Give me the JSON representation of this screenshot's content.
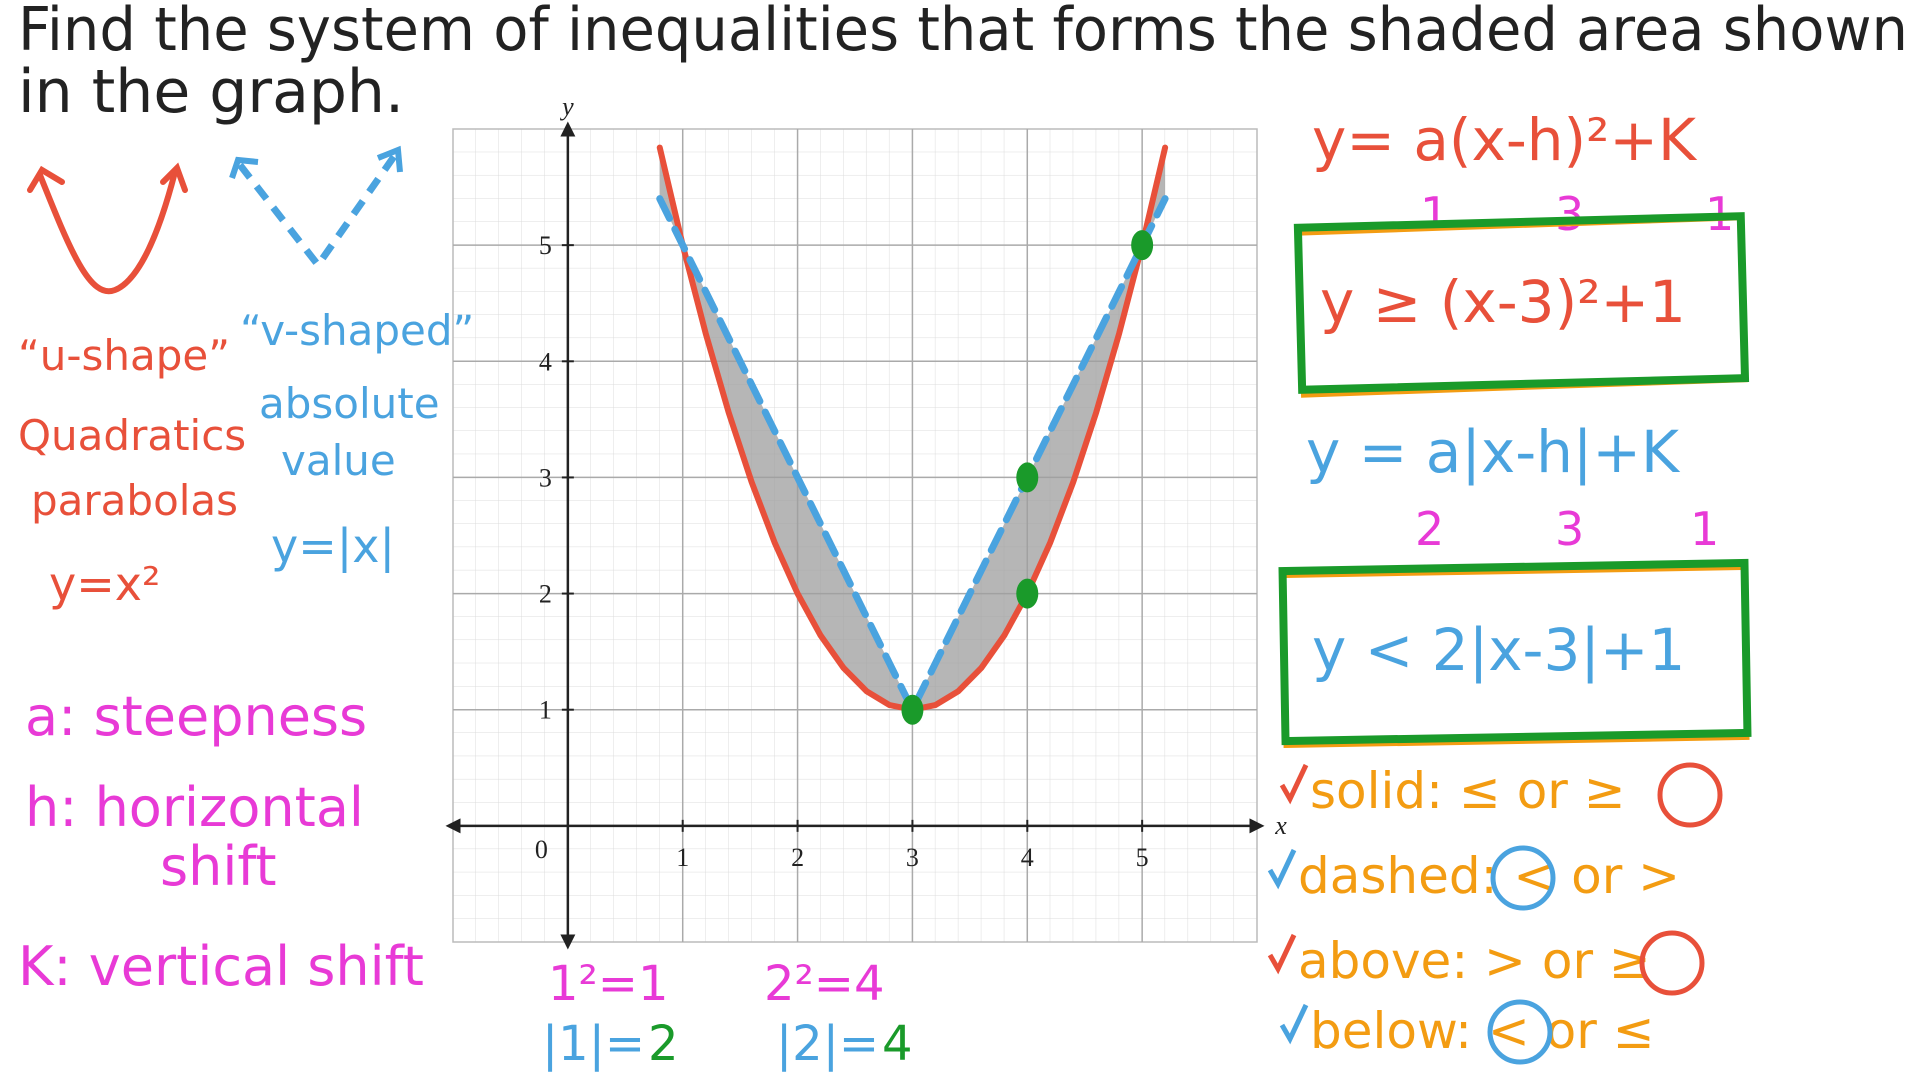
{
  "title_lines": [
    "Find the system of inequalities that forms the shaded area shown",
    "in the graph."
  ],
  "left_notes": {
    "u_shape": "“u-shape”",
    "v_shaped": "“v-shaped”",
    "quadratics": "Quadratics",
    "parabolas": "parabolas",
    "parabola_eq": "y=x²",
    "absolute": "absolute",
    "value": "value",
    "abs_eq": "y=|x|",
    "a_def": "a: steepness",
    "h_def": "h: horizontal",
    "h_def2": "shift",
    "k_def": "K: vertical shift"
  },
  "bottom_notes": {
    "sq1": "1²=1",
    "abs1": "|1|=",
    "abs1_fix": "2",
    "sq2": "2²=4",
    "abs2": "|2|=",
    "abs2_fix": "4"
  },
  "right_notes": {
    "vertex_form": "y= a(x-h)²+K",
    "quad_params": [
      "1",
      "3",
      "1"
    ],
    "quad_answer": "y ≥ (x-3)²+1",
    "abs_form": "y = a|x-h|+K",
    "abs_params": [
      "2",
      "3",
      "1"
    ],
    "abs_answer": "y < 2|x-3|+1",
    "rules": [
      "solid: ≤ or ≥",
      "dashed: < or >",
      "above: > or ≥",
      "below: < or ≤"
    ]
  },
  "chart_data": {
    "type": "line",
    "x_label": "x",
    "y_label": "y",
    "origin_label": "0",
    "x": [
      0.8,
      1.0,
      1.2,
      1.4,
      1.6,
      1.8,
      2.0,
      2.2,
      2.4,
      2.6,
      2.8,
      3.0,
      3.2,
      3.4,
      3.6,
      3.8,
      4.0,
      4.2,
      4.4,
      4.6,
      4.8,
      5.0,
      5.2
    ],
    "series": [
      {
        "color": "#e8503a",
        "values": [
          5.84,
          5.0,
          4.24,
          3.56,
          2.96,
          2.44,
          2.0,
          1.64,
          1.36,
          1.16,
          1.04,
          1.0,
          1.04,
          1.16,
          1.36,
          1.64,
          2.0,
          2.44,
          2.96,
          3.56,
          4.24,
          5.0,
          5.84
        ]
      },
      {
        "color": "#4aa3df",
        "dashed": true,
        "values": [
          5.4,
          5.0,
          4.6,
          4.2,
          3.8,
          3.4,
          3.0,
          2.6,
          2.2,
          1.8,
          1.4,
          1.0,
          1.4,
          1.8,
          2.2,
          2.6,
          3.0,
          3.4,
          3.8,
          4.2,
          4.6,
          5.0,
          5.4
        ]
      }
    ],
    "points": {
      "color": "#1a9a2a",
      "x": [
        3,
        4,
        4,
        5
      ],
      "y": [
        1,
        2,
        3,
        5
      ]
    },
    "xlim": [
      -1,
      6
    ],
    "ylim": [
      -1,
      6
    ],
    "xticks": [
      1,
      2,
      3,
      4,
      5
    ],
    "yticks": [
      1,
      2,
      3,
      4,
      5
    ],
    "grid": true
  }
}
